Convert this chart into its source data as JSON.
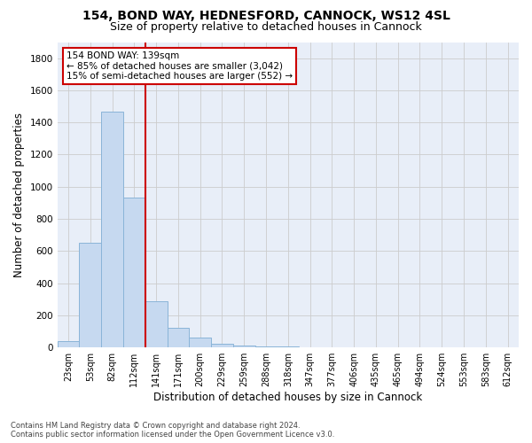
{
  "title1": "154, BOND WAY, HEDNESFORD, CANNOCK, WS12 4SL",
  "title2": "Size of property relative to detached houses in Cannock",
  "xlabel": "Distribution of detached houses by size in Cannock",
  "ylabel": "Number of detached properties",
  "categories": [
    "23sqm",
    "53sqm",
    "82sqm",
    "112sqm",
    "141sqm",
    "171sqm",
    "200sqm",
    "229sqm",
    "259sqm",
    "288sqm",
    "318sqm",
    "347sqm",
    "377sqm",
    "406sqm",
    "435sqm",
    "465sqm",
    "494sqm",
    "524sqm",
    "553sqm",
    "583sqm",
    "612sqm"
  ],
  "values": [
    38,
    650,
    1470,
    935,
    290,
    125,
    62,
    22,
    10,
    8,
    5,
    2,
    2,
    0,
    0,
    0,
    0,
    0,
    0,
    0,
    0
  ],
  "bar_color": "#c6d9f0",
  "bar_edge_color": "#8ab4d8",
  "vline_color": "#cc0000",
  "annotation_text": "154 BOND WAY: 139sqm\n← 85% of detached houses are smaller (3,042)\n15% of semi-detached houses are larger (552) →",
  "annotation_box_color": "#ffffff",
  "annotation_box_edge": "#cc0000",
  "ylim": [
    0,
    1900
  ],
  "yticks": [
    0,
    200,
    400,
    600,
    800,
    1000,
    1200,
    1400,
    1600,
    1800
  ],
  "grid_color": "#cccccc",
  "bg_color": "#e8eef8",
  "footer1": "Contains HM Land Registry data © Crown copyright and database right 2024.",
  "footer2": "Contains public sector information licensed under the Open Government Licence v3.0.",
  "title_fontsize": 10,
  "subtitle_fontsize": 9,
  "axis_label_fontsize": 8.5,
  "tick_fontsize": 7,
  "annotation_fontsize": 7.5
}
